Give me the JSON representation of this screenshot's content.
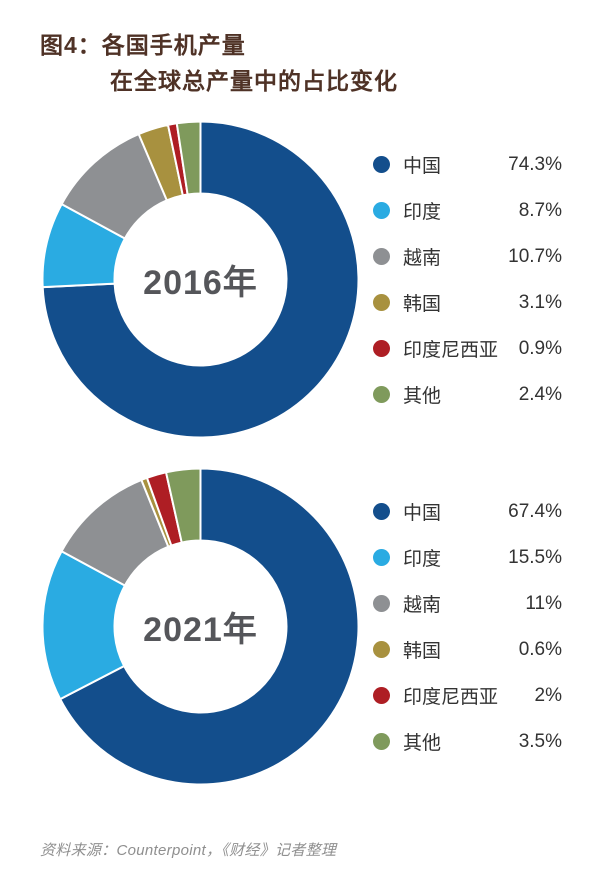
{
  "title": {
    "line1": "图4：各国手机产量",
    "line2": "在全球总产量中的占比变化"
  },
  "source": "资料来源：Counterpoint，《财经》记者整理",
  "palette": {
    "china": "#134e8c",
    "india": "#2aabe2",
    "vietnam": "#8e9093",
    "korea": "#a8913f",
    "indonesia": "#ae1e24",
    "others": "#7f9a5c"
  },
  "chart_data": [
    {
      "type": "pie",
      "subtype": "donut",
      "center_label": "2016年",
      "categories": [
        "中国",
        "印度",
        "越南",
        "韩国",
        "印度尼西亚",
        "其他"
      ],
      "values": [
        74.3,
        8.7,
        10.7,
        3.1,
        0.9,
        2.4
      ],
      "value_labels": [
        "74.3%",
        "8.7%",
        "10.7%",
        "3.1%",
        "0.9%",
        "2.4%"
      ],
      "colors": [
        "#134e8c",
        "#2aabe2",
        "#8e9093",
        "#a8913f",
        "#ae1e24",
        "#7f9a5c"
      ],
      "legend_position": "right",
      "start_angle_deg": 0,
      "direction": "clockwise"
    },
    {
      "type": "pie",
      "subtype": "donut",
      "center_label": "2021年",
      "categories": [
        "中国",
        "印度",
        "越南",
        "韩国",
        "印度尼西亚",
        "其他"
      ],
      "values": [
        67.4,
        15.5,
        11,
        0.6,
        2,
        3.5
      ],
      "value_labels": [
        "67.4%",
        "15.5%",
        "11%",
        "0.6%",
        "2%",
        "3.5%"
      ],
      "colors": [
        "#134e8c",
        "#2aabe2",
        "#8e9093",
        "#a8913f",
        "#ae1e24",
        "#7f9a5c"
      ],
      "legend_position": "right",
      "start_angle_deg": 0,
      "direction": "clockwise"
    }
  ]
}
